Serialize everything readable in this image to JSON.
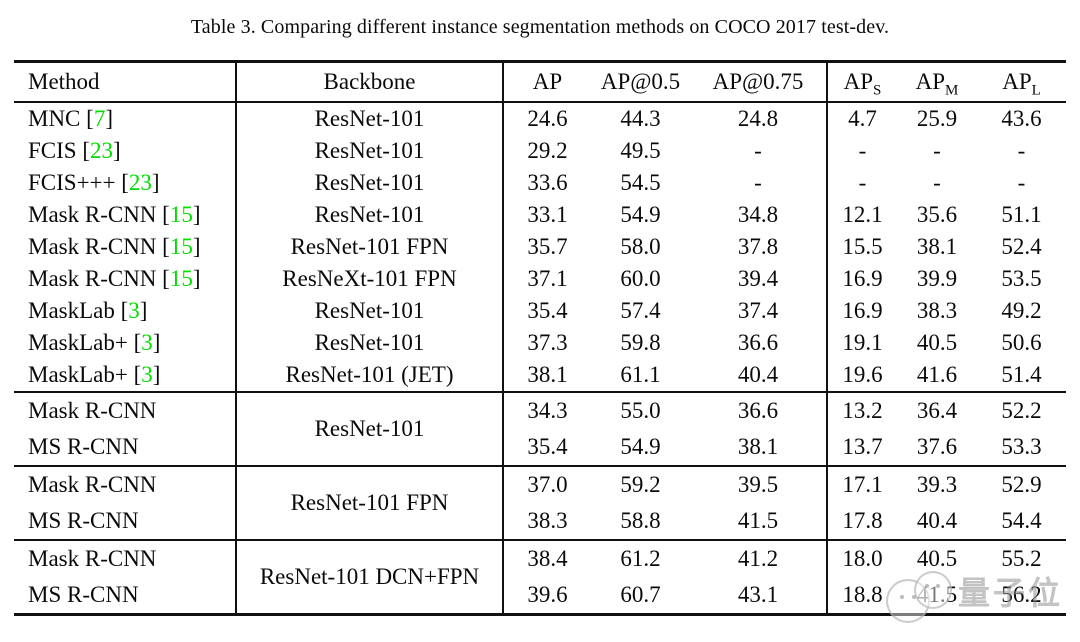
{
  "caption": "Table 3. Comparing different instance segmentation methods on COCO 2017 test-dev.",
  "colors": {
    "citation_green": "#00dd00",
    "text_black": "#0a0a0a",
    "watermark_gray": "#919191"
  },
  "header": {
    "method": "Method",
    "backbone": "Backbone",
    "ap": "AP",
    "ap50": "AP@0.5",
    "ap75": "AP@0.75",
    "ap_s": {
      "base": "AP",
      "sub": "S"
    },
    "ap_m": {
      "base": "AP",
      "sub": "M"
    },
    "ap_l": {
      "base": "AP",
      "sub": "L"
    }
  },
  "chart_data": {
    "type": "table",
    "title": "Table 3. Comparing different instance segmentation methods on COCO 2017 test-dev.",
    "columns": [
      "Method",
      "Backbone",
      "AP",
      "AP@0.5",
      "AP@0.75",
      "APS",
      "APM",
      "APL"
    ],
    "sections": [
      {
        "rows": [
          {
            "method": "MNC",
            "cite": "7",
            "backbone": "ResNet-101",
            "values": [
              "24.6",
              "44.3",
              "24.8",
              "4.7",
              "25.9",
              "43.6"
            ]
          },
          {
            "method": "FCIS",
            "cite": "23",
            "backbone": "ResNet-101",
            "values": [
              "29.2",
              "49.5",
              "-",
              "-",
              "-",
              "-"
            ]
          },
          {
            "method": "FCIS+++",
            "cite": "23",
            "backbone": "ResNet-101",
            "values": [
              "33.6",
              "54.5",
              "-",
              "-",
              "-",
              "-"
            ]
          },
          {
            "method": "Mask R-CNN",
            "cite": "15",
            "backbone": "ResNet-101",
            "values": [
              "33.1",
              "54.9",
              "34.8",
              "12.1",
              "35.6",
              "51.1"
            ]
          },
          {
            "method": "Mask R-CNN",
            "cite": "15",
            "backbone": "ResNet-101 FPN",
            "values": [
              "35.7",
              "58.0",
              "37.8",
              "15.5",
              "38.1",
              "52.4"
            ]
          },
          {
            "method": "Mask R-CNN",
            "cite": "15",
            "backbone": "ResNeXt-101 FPN",
            "values": [
              "37.1",
              "60.0",
              "39.4",
              "16.9",
              "39.9",
              "53.5"
            ]
          },
          {
            "method": "MaskLab",
            "cite": "3",
            "backbone": "ResNet-101",
            "values": [
              "35.4",
              "57.4",
              "37.4",
              "16.9",
              "38.3",
              "49.2"
            ]
          },
          {
            "method": "MaskLab+",
            "cite": "3",
            "backbone": "ResNet-101",
            "values": [
              "37.3",
              "59.8",
              "36.6",
              "19.1",
              "40.5",
              "50.6"
            ]
          },
          {
            "method": "MaskLab+",
            "cite": "3",
            "backbone": "ResNet-101 (JET)",
            "values": [
              "38.1",
              "61.1",
              "40.4",
              "19.6",
              "41.6",
              "51.4"
            ]
          }
        ]
      },
      {
        "shared_backbone": "ResNet-101",
        "rows": [
          {
            "method": "Mask R-CNN",
            "values": [
              "34.3",
              "55.0",
              "36.6",
              "13.2",
              "36.4",
              "52.2"
            ]
          },
          {
            "method": "MS R-CNN",
            "values": [
              "35.4",
              "54.9",
              "38.1",
              "13.7",
              "37.6",
              "53.3"
            ]
          }
        ]
      },
      {
        "shared_backbone": "ResNet-101 FPN",
        "rows": [
          {
            "method": "Mask R-CNN",
            "values": [
              "37.0",
              "59.2",
              "39.5",
              "17.1",
              "39.3",
              "52.9"
            ]
          },
          {
            "method": "MS R-CNN",
            "values": [
              "38.3",
              "58.8",
              "41.5",
              "17.8",
              "40.4",
              "54.4"
            ]
          }
        ]
      },
      {
        "shared_backbone": "ResNet-101 DCN+FPN",
        "rows": [
          {
            "method": "Mask R-CNN",
            "values": [
              "38.4",
              "61.2",
              "41.2",
              "18.0",
              "40.5",
              "55.2"
            ]
          },
          {
            "method": "MS R-CNN",
            "values": [
              "39.6",
              "60.7",
              "43.1",
              "18.8",
              "41.5",
              "56.2"
            ]
          }
        ]
      }
    ]
  },
  "watermark": {
    "text": "量子位"
  }
}
